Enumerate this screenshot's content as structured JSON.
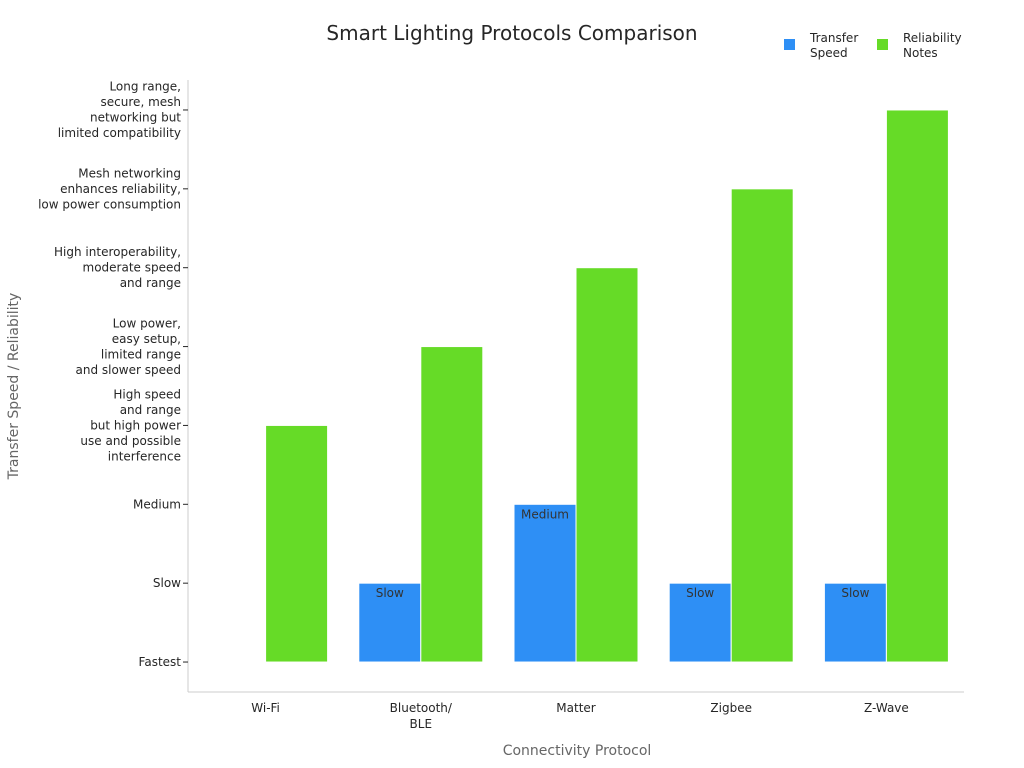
{
  "chart_data": {
    "type": "bar",
    "title": "Smart Lighting Protocols Comparison",
    "xlabel": "Connectivity Protocol",
    "ylabel": "Transfer Speed / Reliability",
    "categories": [
      [
        "Wi-Fi"
      ],
      [
        "Bluetooth/",
        "BLE"
      ],
      [
        "Matter"
      ],
      [
        "Zigbee"
      ],
      [
        "Z-Wave"
      ]
    ],
    "y_ticks": [
      [
        "Fastest"
      ],
      [
        "Slow"
      ],
      [
        "Medium"
      ],
      [
        "High speed",
        "and range",
        "but high power",
        "use and possible",
        "interference"
      ],
      [
        "Low power,",
        "easy setup,",
        "limited range",
        "and slower speed"
      ],
      [
        "High interoperability,",
        "moderate speed",
        "and range"
      ],
      [
        "Mesh networking",
        "enhances reliability,",
        "low power consumption"
      ],
      [
        "Long range,",
        "secure, mesh",
        "networking but",
        "limited compatibility"
      ]
    ],
    "ylim": [
      -0.38,
      7.38
    ],
    "series": [
      {
        "name": [
          "Transfer",
          "Speed"
        ],
        "color": "#2e8ff5",
        "values": [
          0,
          1,
          2,
          1,
          1
        ],
        "labels": [
          "",
          "Slow",
          "Medium",
          "Slow",
          "Slow"
        ]
      },
      {
        "name": [
          "Reliability",
          "Notes"
        ],
        "color": "#66db27",
        "values": [
          3,
          4,
          5,
          6,
          7
        ],
        "labels": [
          "",
          "",
          "",
          "",
          ""
        ]
      }
    ],
    "legend": "top-right",
    "grid": false
  }
}
